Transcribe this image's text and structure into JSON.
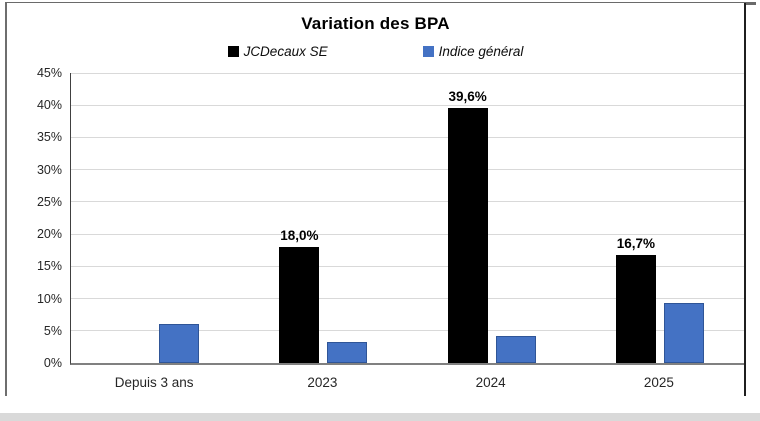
{
  "frame": {
    "top_border_color": "#6a6a6a",
    "bottom_strip_color": "#d9d9d9"
  },
  "chart_data": {
    "type": "bar",
    "title": "Variation des BPA",
    "categories": [
      "Depuis 3 ans",
      "2023",
      "2024",
      "2025"
    ],
    "series": [
      {
        "name": "JCDecaux SE",
        "color": "#000000",
        "border_color": "#000000",
        "values": [
          null,
          18.0,
          39.6,
          16.7
        ],
        "data_labels": [
          null,
          "18,0%",
          "39,6%",
          "16,7%"
        ]
      },
      {
        "name": "Indice général",
        "color": "#4472C4",
        "border_color": "#2F5597",
        "values": [
          6.0,
          3.3,
          4.2,
          9.3
        ],
        "data_labels": [
          null,
          null,
          null,
          null
        ]
      }
    ],
    "ylim": [
      0,
      45
    ],
    "ytick_step": 5,
    "ytick_labels": [
      "0%",
      "5%",
      "10%",
      "15%",
      "20%",
      "25%",
      "30%",
      "35%",
      "40%",
      "45%"
    ],
    "grid": true,
    "gridline_color": "#d9d9d9",
    "axis_line_color": "#808080",
    "legend_position": "top",
    "number_format": "percent with comma decimal"
  }
}
